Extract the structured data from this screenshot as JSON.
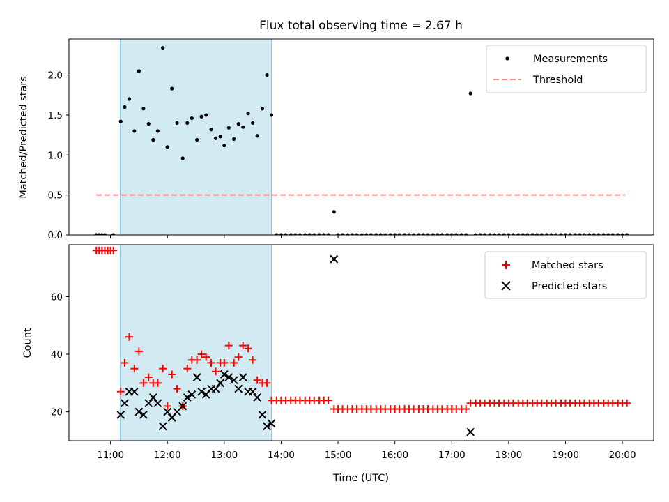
{
  "title": "Flux total observing time = 2.67 h",
  "colors": {
    "span": "#add8e6",
    "measurement": "#000000",
    "threshold": "#ff7f7f",
    "matched": "#ff0000",
    "predicted": "#000000"
  },
  "chart_data": [
    {
      "type": "scatter",
      "ylabel": "Matched/Predicted stars",
      "xlabel": "",
      "ylim": [
        0,
        2.45
      ],
      "yticks": [
        0.0,
        0.5,
        1.0,
        1.5,
        2.0
      ],
      "ytick_labels": [
        "0.0",
        "0.5",
        "1.0",
        "1.5",
        "2.0"
      ],
      "shaded_span_hours": [
        11.17,
        13.83
      ],
      "legend": {
        "placement": "upper right",
        "entries": [
          "Measurements",
          "Threshold"
        ]
      },
      "threshold": {
        "name": "Threshold",
        "value": 0.5,
        "x_range_hours": [
          10.75,
          20.05
        ]
      },
      "series": [
        {
          "name": "Measurements",
          "points": [
            [
              10.75,
              0
            ],
            [
              10.8,
              0
            ],
            [
              10.85,
              0
            ],
            [
              10.9,
              0
            ],
            [
              11.05,
              0
            ],
            [
              11.18,
              1.42
            ],
            [
              11.25,
              1.6
            ],
            [
              11.33,
              1.7
            ],
            [
              11.42,
              1.3
            ],
            [
              11.5,
              2.05
            ],
            [
              11.58,
              1.58
            ],
            [
              11.67,
              1.39
            ],
            [
              11.75,
              1.19
            ],
            [
              11.83,
              1.3
            ],
            [
              11.92,
              2.34
            ],
            [
              12.0,
              1.1
            ],
            [
              12.08,
              1.83
            ],
            [
              12.17,
              1.4
            ],
            [
              12.27,
              0.96
            ],
            [
              12.35,
              1.4
            ],
            [
              12.43,
              1.46
            ],
            [
              12.52,
              1.19
            ],
            [
              12.6,
              1.48
            ],
            [
              12.68,
              1.5
            ],
            [
              12.77,
              1.32
            ],
            [
              12.85,
              1.21
            ],
            [
              12.93,
              1.23
            ],
            [
              13.0,
              1.12
            ],
            [
              13.08,
              1.34
            ],
            [
              13.17,
              1.2
            ],
            [
              13.25,
              1.39
            ],
            [
              13.33,
              1.35
            ],
            [
              13.42,
              1.52
            ],
            [
              13.5,
              1.4
            ],
            [
              13.58,
              1.24
            ],
            [
              13.67,
              1.58
            ],
            [
              13.75,
              2.0
            ],
            [
              13.83,
              1.5
            ],
            [
              13.92,
              0
            ],
            [
              14.0,
              0
            ],
            [
              14.08,
              0
            ],
            [
              14.17,
              0
            ],
            [
              14.25,
              0
            ],
            [
              14.33,
              0
            ],
            [
              14.42,
              0
            ],
            [
              14.5,
              0
            ],
            [
              14.58,
              0
            ],
            [
              14.67,
              0
            ],
            [
              14.75,
              0
            ],
            [
              14.83,
              0
            ],
            [
              14.93,
              0.29
            ],
            [
              15.0,
              0
            ],
            [
              15.08,
              0
            ],
            [
              15.17,
              0
            ],
            [
              15.25,
              0
            ],
            [
              15.33,
              0
            ],
            [
              15.42,
              0
            ],
            [
              15.5,
              0
            ],
            [
              15.58,
              0
            ],
            [
              15.67,
              0
            ],
            [
              15.75,
              0
            ],
            [
              15.83,
              0
            ],
            [
              15.92,
              0
            ],
            [
              16.0,
              0
            ],
            [
              16.08,
              0
            ],
            [
              16.17,
              0
            ],
            [
              16.25,
              0
            ],
            [
              16.33,
              0
            ],
            [
              16.42,
              0
            ],
            [
              16.5,
              0
            ],
            [
              16.58,
              0
            ],
            [
              16.67,
              0
            ],
            [
              16.75,
              0
            ],
            [
              16.83,
              0
            ],
            [
              16.92,
              0
            ],
            [
              17.0,
              0
            ],
            [
              17.08,
              0
            ],
            [
              17.17,
              0
            ],
            [
              17.25,
              0
            ],
            [
              17.33,
              1.77
            ],
            [
              17.42,
              0
            ],
            [
              17.5,
              0
            ],
            [
              17.58,
              0
            ],
            [
              17.67,
              0
            ],
            [
              17.75,
              0
            ],
            [
              17.83,
              0
            ],
            [
              17.92,
              0
            ],
            [
              18.0,
              0
            ],
            [
              18.08,
              0
            ],
            [
              18.17,
              0
            ],
            [
              18.25,
              0
            ],
            [
              18.33,
              0
            ],
            [
              18.42,
              0
            ],
            [
              18.5,
              0
            ],
            [
              18.58,
              0
            ],
            [
              18.67,
              0
            ],
            [
              18.75,
              0
            ],
            [
              18.83,
              0
            ],
            [
              18.92,
              0
            ],
            [
              19.0,
              0
            ],
            [
              19.08,
              0
            ],
            [
              19.17,
              0
            ],
            [
              19.25,
              0
            ],
            [
              19.33,
              0
            ],
            [
              19.42,
              0
            ],
            [
              19.5,
              0
            ],
            [
              19.58,
              0
            ],
            [
              19.67,
              0
            ],
            [
              19.75,
              0
            ],
            [
              19.83,
              0
            ],
            [
              19.92,
              0
            ],
            [
              20.0,
              0
            ],
            [
              20.08,
              0
            ]
          ]
        }
      ]
    },
    {
      "type": "scatter",
      "ylabel": "Count",
      "xlabel": "Time (UTC)",
      "ylim": [
        10,
        78
      ],
      "yticks": [
        20,
        40,
        60
      ],
      "ytick_labels": [
        "20",
        "40",
        "60"
      ],
      "xlim_hours": [
        10.27,
        20.55
      ],
      "xticks_hours": [
        11,
        12,
        13,
        14,
        15,
        16,
        17,
        18,
        19,
        20
      ],
      "xtick_labels": [
        "11:00",
        "12:00",
        "13:00",
        "14:00",
        "15:00",
        "16:00",
        "17:00",
        "18:00",
        "19:00",
        "20:00"
      ],
      "shaded_span_hours": [
        11.17,
        13.83
      ],
      "legend": {
        "placement": "upper right",
        "entries": [
          "Matched stars",
          "Predicted stars"
        ]
      },
      "series": [
        {
          "name": "Matched stars",
          "points": [
            [
              10.75,
              76
            ],
            [
              10.8,
              76
            ],
            [
              10.85,
              76
            ],
            [
              10.9,
              76
            ],
            [
              10.95,
              76
            ],
            [
              11.0,
              76
            ],
            [
              11.05,
              76
            ],
            [
              11.18,
              27
            ],
            [
              11.25,
              37
            ],
            [
              11.33,
              46
            ],
            [
              11.42,
              35
            ],
            [
              11.5,
              41
            ],
            [
              11.58,
              30
            ],
            [
              11.67,
              32
            ],
            [
              11.75,
              30
            ],
            [
              11.83,
              30
            ],
            [
              11.92,
              35
            ],
            [
              12.0,
              22
            ],
            [
              12.08,
              33
            ],
            [
              12.17,
              28
            ],
            [
              12.27,
              22
            ],
            [
              12.35,
              35
            ],
            [
              12.43,
              38
            ],
            [
              12.52,
              38
            ],
            [
              12.6,
              40
            ],
            [
              12.68,
              39
            ],
            [
              12.77,
              37
            ],
            [
              12.85,
              34
            ],
            [
              12.93,
              37
            ],
            [
              13.0,
              37
            ],
            [
              13.08,
              43
            ],
            [
              13.17,
              37
            ],
            [
              13.25,
              39
            ],
            [
              13.33,
              43
            ],
            [
              13.42,
              42
            ],
            [
              13.5,
              38
            ],
            [
              13.58,
              31
            ],
            [
              13.67,
              30
            ],
            [
              13.75,
              30
            ],
            [
              13.83,
              24
            ],
            [
              13.92,
              24
            ],
            [
              14.0,
              24
            ],
            [
              14.08,
              24
            ],
            [
              14.17,
              24
            ],
            [
              14.25,
              24
            ],
            [
              14.33,
              24
            ],
            [
              14.42,
              24
            ],
            [
              14.5,
              24
            ],
            [
              14.58,
              24
            ],
            [
              14.67,
              24
            ],
            [
              14.75,
              24
            ],
            [
              14.83,
              24
            ],
            [
              14.93,
              21
            ],
            [
              15.0,
              21
            ],
            [
              15.08,
              21
            ],
            [
              15.17,
              21
            ],
            [
              15.25,
              21
            ],
            [
              15.33,
              21
            ],
            [
              15.42,
              21
            ],
            [
              15.5,
              21
            ],
            [
              15.58,
              21
            ],
            [
              15.67,
              21
            ],
            [
              15.75,
              21
            ],
            [
              15.83,
              21
            ],
            [
              15.92,
              21
            ],
            [
              16.0,
              21
            ],
            [
              16.08,
              21
            ],
            [
              16.17,
              21
            ],
            [
              16.25,
              21
            ],
            [
              16.33,
              21
            ],
            [
              16.42,
              21
            ],
            [
              16.5,
              21
            ],
            [
              16.58,
              21
            ],
            [
              16.67,
              21
            ],
            [
              16.75,
              21
            ],
            [
              16.83,
              21
            ],
            [
              16.92,
              21
            ],
            [
              17.0,
              21
            ],
            [
              17.08,
              21
            ],
            [
              17.17,
              21
            ],
            [
              17.25,
              21
            ],
            [
              17.33,
              23
            ],
            [
              17.42,
              23
            ],
            [
              17.5,
              23
            ],
            [
              17.58,
              23
            ],
            [
              17.67,
              23
            ],
            [
              17.75,
              23
            ],
            [
              17.83,
              23
            ],
            [
              17.92,
              23
            ],
            [
              18.0,
              23
            ],
            [
              18.08,
              23
            ],
            [
              18.17,
              23
            ],
            [
              18.25,
              23
            ],
            [
              18.33,
              23
            ],
            [
              18.42,
              23
            ],
            [
              18.5,
              23
            ],
            [
              18.58,
              23
            ],
            [
              18.67,
              23
            ],
            [
              18.75,
              23
            ],
            [
              18.83,
              23
            ],
            [
              18.92,
              23
            ],
            [
              19.0,
              23
            ],
            [
              19.08,
              23
            ],
            [
              19.17,
              23
            ],
            [
              19.25,
              23
            ],
            [
              19.33,
              23
            ],
            [
              19.42,
              23
            ],
            [
              19.5,
              23
            ],
            [
              19.58,
              23
            ],
            [
              19.67,
              23
            ],
            [
              19.75,
              23
            ],
            [
              19.83,
              23
            ],
            [
              19.92,
              23
            ],
            [
              20.0,
              23
            ],
            [
              20.08,
              23
            ]
          ]
        },
        {
          "name": "Predicted stars",
          "points": [
            [
              11.18,
              19
            ],
            [
              11.25,
              23
            ],
            [
              11.33,
              27
            ],
            [
              11.42,
              27
            ],
            [
              11.5,
              20
            ],
            [
              11.58,
              19
            ],
            [
              11.67,
              23
            ],
            [
              11.75,
              25
            ],
            [
              11.83,
              23
            ],
            [
              11.92,
              15
            ],
            [
              12.0,
              20
            ],
            [
              12.08,
              18
            ],
            [
              12.17,
              20
            ],
            [
              12.27,
              22
            ],
            [
              12.35,
              25
            ],
            [
              12.43,
              26
            ],
            [
              12.52,
              32
            ],
            [
              12.6,
              27
            ],
            [
              12.68,
              26
            ],
            [
              12.77,
              28
            ],
            [
              12.85,
              28
            ],
            [
              12.93,
              30
            ],
            [
              13.0,
              33
            ],
            [
              13.08,
              32
            ],
            [
              13.17,
              31
            ],
            [
              13.25,
              28
            ],
            [
              13.33,
              32
            ],
            [
              13.42,
              27
            ],
            [
              13.5,
              27
            ],
            [
              13.58,
              25
            ],
            [
              13.67,
              19
            ],
            [
              13.75,
              15
            ],
            [
              13.83,
              16
            ],
            [
              14.93,
              73
            ],
            [
              17.33,
              13
            ]
          ]
        }
      ]
    }
  ]
}
